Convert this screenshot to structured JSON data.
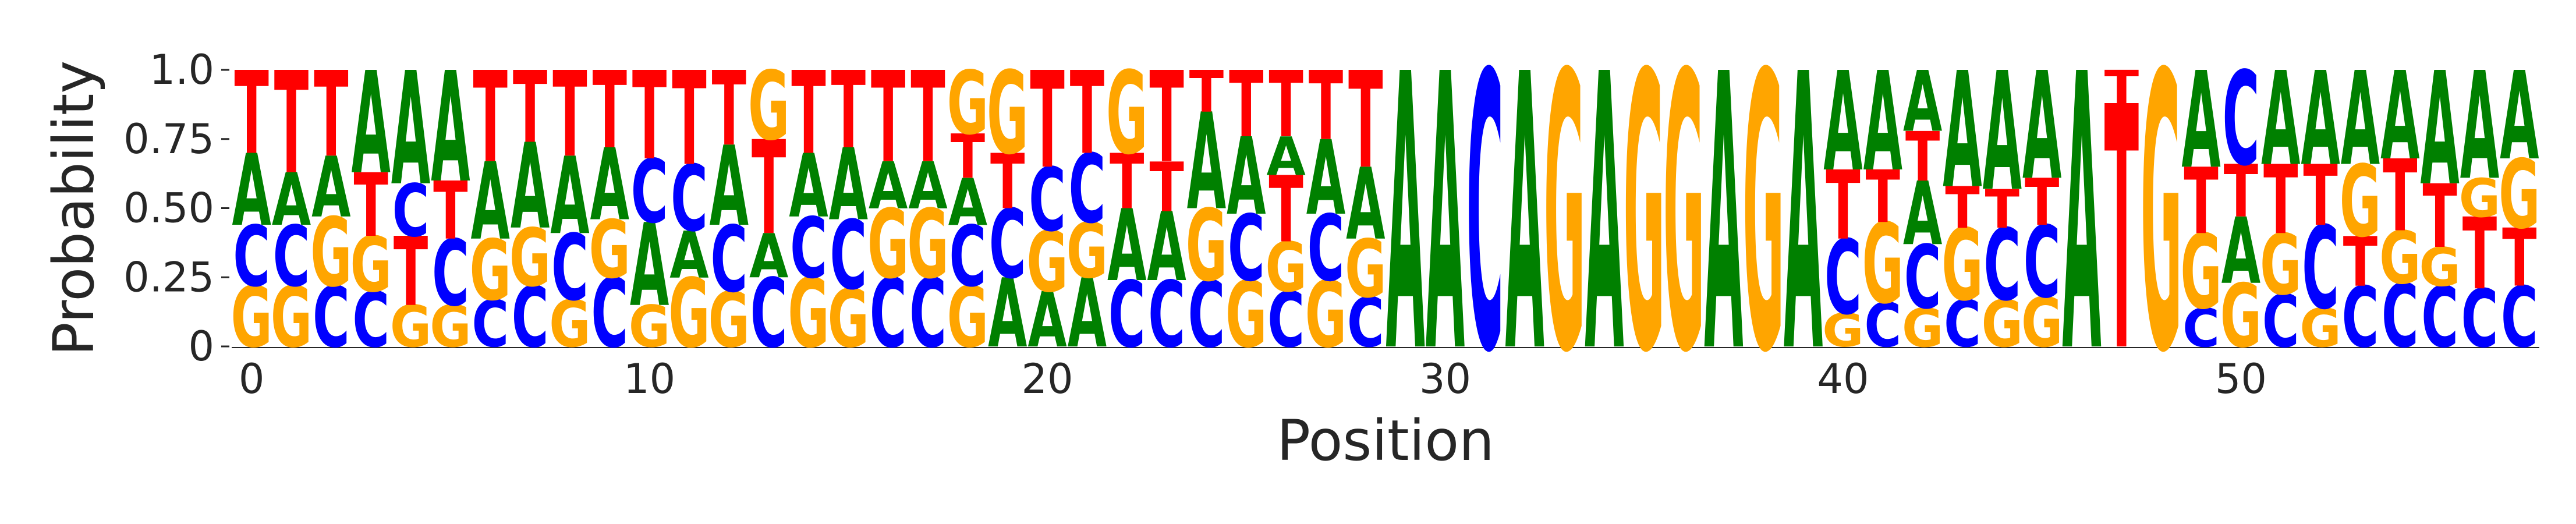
{
  "chart_data": {
    "type": "sequence-logo",
    "xlabel": "Position",
    "ylabel": "Probability",
    "ylim": [
      0,
      1
    ],
    "xlim": [
      -0.5,
      57.5
    ],
    "x_ticks": [
      0,
      10,
      20,
      30,
      40,
      50
    ],
    "x_tick_labels": [
      "0",
      "10",
      "20",
      "30",
      "40",
      "50"
    ],
    "y_ticks": [
      0,
      0.25,
      0.5,
      0.75,
      1.0
    ],
    "y_tick_labels": [
      "0",
      "0.25",
      "0.50",
      "0.75",
      "1.0"
    ],
    "grid": false,
    "letter_colors": {
      "A": "#008000",
      "C": "#0000ff",
      "G": "#ffa500",
      "T": "#ff0000"
    },
    "positions": [
      {
        "pos": 0,
        "G": 0.22,
        "C": 0.22,
        "A": 0.26,
        "T": 0.3
      },
      {
        "pos": 1,
        "G": 0.22,
        "C": 0.22,
        "A": 0.19,
        "T": 0.37
      },
      {
        "pos": 2,
        "C": 0.22,
        "G": 0.25,
        "A": 0.22,
        "T": 0.31
      },
      {
        "pos": 3,
        "C": 0.2,
        "G": 0.2,
        "T": 0.23,
        "A": 0.37
      },
      {
        "pos": 4,
        "G": 0.15,
        "T": 0.25,
        "C": 0.19,
        "A": 0.41
      },
      {
        "pos": 5,
        "G": 0.15,
        "C": 0.24,
        "T": 0.21,
        "A": 0.4
      },
      {
        "pos": 6,
        "C": 0.17,
        "G": 0.22,
        "A": 0.28,
        "T": 0.33
      },
      {
        "pos": 7,
        "C": 0.22,
        "G": 0.21,
        "A": 0.31,
        "T": 0.26
      },
      {
        "pos": 8,
        "G": 0.17,
        "C": 0.24,
        "A": 0.28,
        "T": 0.31
      },
      {
        "pos": 9,
        "C": 0.25,
        "G": 0.21,
        "A": 0.26,
        "T": 0.28
      },
      {
        "pos": 10,
        "G": 0.15,
        "A": 0.3,
        "C": 0.23,
        "T": 0.32
      },
      {
        "pos": 11,
        "G": 0.25,
        "A": 0.17,
        "C": 0.24,
        "T": 0.34
      },
      {
        "pos": 12,
        "G": 0.2,
        "C": 0.24,
        "A": 0.29,
        "T": 0.27
      },
      {
        "pos": 13,
        "C": 0.25,
        "A": 0.16,
        "C2": 0.0,
        "T": 0.34,
        "G": 0.25
      },
      {
        "pos": 14,
        "G": 0.25,
        "C": 0.22,
        "A": 0.23,
        "T": 0.3
      },
      {
        "pos": 15,
        "G": 0.21,
        "C": 0.25,
        "A": 0.26,
        "T": 0.28
      },
      {
        "pos": 16,
        "C": 0.25,
        "G": 0.25,
        "A": 0.17,
        "T": 0.33
      },
      {
        "pos": 17,
        "C": 0.25,
        "G": 0.25,
        "A": 0.17,
        "T": 0.33
      },
      {
        "pos": 18,
        "G": 0.22,
        "C": 0.22,
        "A": 0.17,
        "T": 0.16,
        "G2": 0.23
      },
      {
        "pos": 19,
        "A": 0.25,
        "C": 0.25,
        "T": 0.2,
        "G": 0.3
      },
      {
        "pos": 20,
        "A": 0.2,
        "A2": 0.0,
        "G": 0.22,
        "C": 0.23,
        "T": 0.35
      },
      {
        "pos": 21,
        "A": 0.25,
        "G": 0.2,
        "C": 0.25,
        "T": 0.3
      },
      {
        "pos": 22,
        "C": 0.24,
        "C2": 0.0,
        "A": 0.26,
        "T": 0.2,
        "G": 0.3
      },
      {
        "pos": 23,
        "C": 0.24,
        "A": 0.25,
        "T": 0.18,
        "A2": 0.0,
        "G": 0.0,
        "T2": 0.33
      },
      {
        "pos": 24,
        "C": 0.24,
        "G": 0.26,
        "A": 0.35,
        "T": 0.15
      },
      {
        "pos": 25,
        "G": 0.24,
        "C": 0.24,
        "A": 0.28,
        "T": 0.24
      },
      {
        "pos": 26,
        "C": 0.2,
        "G": 0.18,
        "T": 0.24,
        "A": 0.14,
        "T2": 0.24
      },
      {
        "pos": 27,
        "G": 0.24,
        "C": 0.24,
        "A": 0.27,
        "T": 0.25
      },
      {
        "pos": 28,
        "C": 0.18,
        "G": 0.21,
        "A": 0.26,
        "T": 0.35
      },
      {
        "pos": 29,
        "A": 1.0
      },
      {
        "pos": 30,
        "A": 1.0
      },
      {
        "pos": 31,
        "C": 1.0
      },
      {
        "pos": 32,
        "A": 1.0
      },
      {
        "pos": 33,
        "G": 1.0
      },
      {
        "pos": 34,
        "A": 1.0
      },
      {
        "pos": 35,
        "G": 1.0
      },
      {
        "pos": 36,
        "G": 1.0
      },
      {
        "pos": 37,
        "A": 1.0
      },
      {
        "pos": 38,
        "G": 1.0
      },
      {
        "pos": 39,
        "A": 1.0
      },
      {
        "pos": 40,
        "G": 0.12,
        "C": 0.27,
        "T": 0.25,
        "A": 0.36
      },
      {
        "pos": 41,
        "C": 0.16,
        "G": 0.29,
        "T": 0.19,
        "A": 0.36
      },
      {
        "pos": 42,
        "G": 0.14,
        "C": 0.23,
        "A": 0.23,
        "T": 0.18,
        "A2": 0.22
      },
      {
        "pos": 43,
        "C": 0.17,
        "G": 0.26,
        "T": 0.15,
        "A": 0.42
      },
      {
        "pos": 44,
        "G": 0.17,
        "C": 0.26,
        "T": 0.14,
        "A": 0.43
      },
      {
        "pos": 45,
        "G": 0.18,
        "C": 0.26,
        "T": 0.17,
        "A": 0.39
      },
      {
        "pos": 46,
        "A": 1.0
      },
      {
        "pos": 47,
        "T": 0.88,
        "T2": 0.12
      },
      {
        "pos": 48,
        "G": 1.0
      },
      {
        "pos": 49,
        "C": 0.14,
        "G": 0.27,
        "T": 0.24,
        "A": 0.35
      },
      {
        "pos": 50,
        "G": 0.23,
        "A": 0.24,
        "T": 0.19,
        "C": 0.34
      },
      {
        "pos": 51,
        "C": 0.19,
        "G": 0.22,
        "T": 0.25,
        "A": 0.34
      },
      {
        "pos": 52,
        "G": 0.14,
        "C": 0.3,
        "T": 0.22,
        "A": 0.34
      },
      {
        "pos": 53,
        "C": 0.22,
        "T": 0.18,
        "G": 0.26,
        "A": 0.34
      },
      {
        "pos": 54,
        "C": 0.23,
        "G": 0.19,
        "T": 0.26,
        "A": 0.32
      },
      {
        "pos": 55,
        "C": 0.22,
        "G": 0.14,
        "T": 0.23,
        "T2": 0.0,
        "A": 0.41
      },
      {
        "pos": 56,
        "C": 0.21,
        "T": 0.26,
        "G": 0.14,
        "A": 0.39
      },
      {
        "pos": 57,
        "C": 0.22,
        "T": 0.21,
        "G": 0.25,
        "A": 0.32
      }
    ]
  }
}
